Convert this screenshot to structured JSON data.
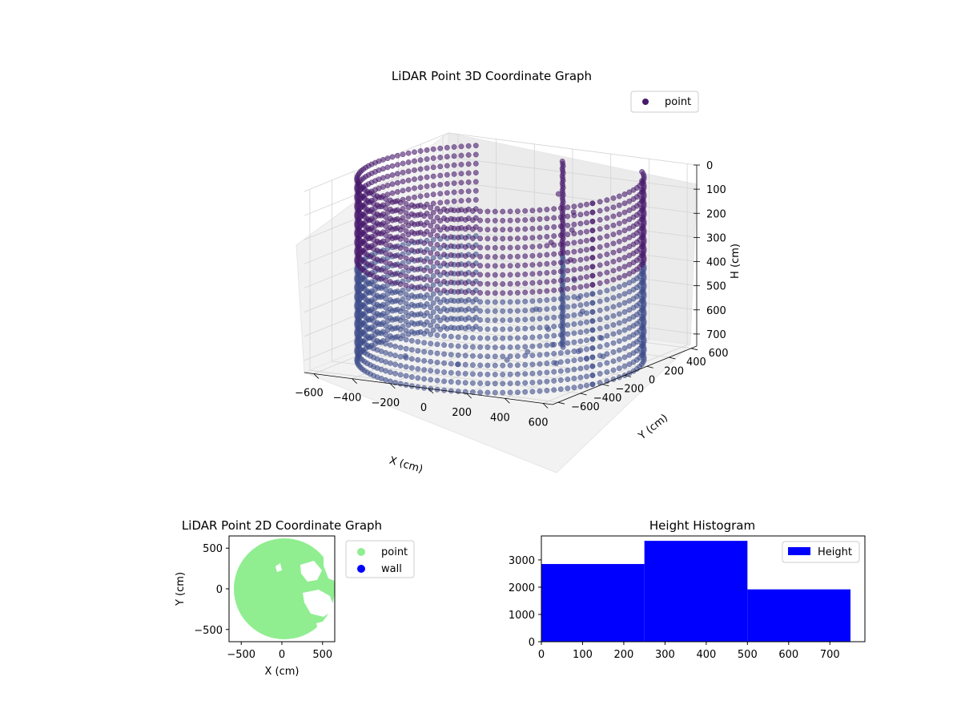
{
  "chart_data": [
    {
      "type": "scatter",
      "projection": "3d",
      "title": "LiDAR Point 3D Coordinate Graph",
      "xlabel": "X (cm)",
      "ylabel": "Y (cm)",
      "zlabel": "H (cm)",
      "x_ticks": [
        "−600",
        "−400",
        "−200",
        "0",
        "200",
        "400",
        "600"
      ],
      "y_ticks": [
        "−600",
        "−400",
        "−200",
        "0",
        "200",
        "400",
        "600"
      ],
      "z_ticks": [
        "0",
        "100",
        "200",
        "300",
        "400",
        "500",
        "600",
        "700"
      ],
      "xlim": [
        -650,
        650
      ],
      "ylim": [
        -650,
        650
      ],
      "zlim": [
        0,
        750
      ],
      "z_axis_inverted": true,
      "grid": true,
      "legend": {
        "placement": "top-right",
        "entries": [
          "point"
        ]
      },
      "series": [
        {
          "name": "point",
          "color": "#481a6c",
          "shape": "cylindrical wall of radius ~650 cm with partial coverage, plus interior clusters",
          "wall_radius": 650,
          "wall_arc_deg": [
            130,
            340
          ],
          "wall_arc2_deg": [
            -20,
            40
          ],
          "height_range": [
            0,
            750
          ],
          "interior_points": [
            [
              100,
              350,
              120
            ],
            [
              150,
              400,
              200
            ],
            [
              200,
              300,
              250
            ],
            [
              120,
              250,
              300
            ],
            [
              250,
              200,
              350
            ],
            [
              300,
              150,
              420
            ],
            [
              350,
              100,
              480
            ],
            [
              400,
              50,
              520
            ],
            [
              250,
              0,
              600
            ],
            [
              300,
              -50,
              650
            ],
            [
              350,
              100,
              700
            ],
            [
              450,
              150,
              720
            ],
            [
              200,
              -100,
              680
            ],
            [
              150,
              -200,
              700
            ],
            [
              100,
              150,
              560
            ],
            [
              380,
              -150,
              700
            ],
            [
              -50,
              -300,
              720
            ],
            [
              -150,
              -600,
              640
            ],
            [
              500,
              50,
              620
            ],
            [
              480,
              -50,
              690
            ]
          ]
        }
      ]
    },
    {
      "type": "scatter",
      "title": "LiDAR Point 2D Coordinate Graph",
      "xlabel": "X (cm)",
      "ylabel": "Y (cm)",
      "x_ticks": [
        "−500",
        "0",
        "500"
      ],
      "y_ticks": [
        "500",
        "0",
        "−500"
      ],
      "xlim": [
        -650,
        650
      ],
      "ylim": [
        -650,
        650
      ],
      "legend": {
        "placement": "outside-right",
        "entries": [
          "point",
          "wall"
        ]
      },
      "series": [
        {
          "name": "point",
          "color": "#90ee90",
          "shape": "filled disc radius ~620 with gaps on right"
        },
        {
          "name": "wall",
          "color": "#0000ff"
        }
      ]
    },
    {
      "type": "bar",
      "title": "Height Histogram",
      "x_ticks": [
        "0",
        "100",
        "200",
        "300",
        "400",
        "500",
        "600",
        "700"
      ],
      "y_ticks": [
        "0",
        "1000",
        "2000",
        "3000"
      ],
      "bins": [
        [
          0,
          250
        ],
        [
          250,
          500
        ],
        [
          500,
          750
        ]
      ],
      "values": [
        2850,
        3700,
        1920
      ],
      "xlim": [
        0,
        785
      ],
      "ylim": [
        0,
        3880
      ],
      "color": "#0000ff",
      "legend": {
        "placement": "top-right",
        "entries": [
          "Height"
        ]
      }
    }
  ]
}
